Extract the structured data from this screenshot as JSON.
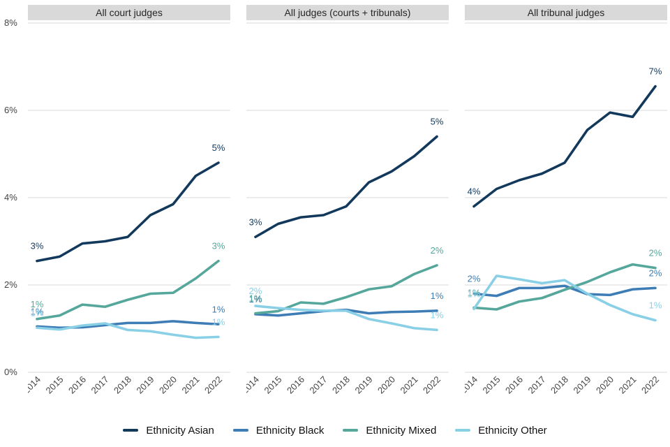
{
  "chart_data": {
    "type": "line",
    "title": "",
    "x": [
      2014,
      2015,
      2016,
      2017,
      2018,
      2019,
      2020,
      2021,
      2022
    ],
    "ylim": [
      0,
      8
    ],
    "ytick_labels": [
      "0%",
      "2%",
      "4%",
      "6%",
      "8%"
    ],
    "grid": "horizontal",
    "legend_position": "bottom",
    "series_colors": {
      "Ethnicity Asian": "#12395c",
      "Ethnicity Black": "#3d7cb5",
      "Ethnicity Mixed": "#55a79b",
      "Ethnicity Other": "#89cfe6"
    },
    "panels": [
      {
        "label": "All court judges",
        "series": [
          {
            "name": "Ethnicity Asian",
            "values": [
              2.55,
              2.65,
              2.95,
              3.0,
              3.1,
              3.6,
              3.85,
              4.5,
              4.8
            ],
            "first_label": "3%",
            "last_label": "5%"
          },
          {
            "name": "Ethnicity Black",
            "values": [
              1.05,
              1.02,
              1.03,
              1.08,
              1.13,
              1.13,
              1.17,
              1.13,
              1.1
            ],
            "first_label": "1%",
            "last_label": "1%"
          },
          {
            "name": "Ethnicity Mixed",
            "values": [
              1.22,
              1.3,
              1.55,
              1.5,
              1.66,
              1.8,
              1.82,
              2.15,
              2.55
            ],
            "first_label": "1%",
            "last_label": "3%"
          },
          {
            "name": "Ethnicity Other",
            "values": [
              1.02,
              0.98,
              1.07,
              1.12,
              0.97,
              0.94,
              0.86,
              0.79,
              0.81
            ],
            "first_label": "1%",
            "last_label": "1%"
          }
        ]
      },
      {
        "label": "All judges (courts + tribunals)",
        "series": [
          {
            "name": "Ethnicity Asian",
            "values": [
              3.1,
              3.4,
              3.55,
              3.6,
              3.8,
              4.35,
              4.6,
              4.95,
              5.4
            ],
            "first_label": "3%",
            "last_label": "5%"
          },
          {
            "name": "Ethnicity Black",
            "values": [
              1.33,
              1.3,
              1.35,
              1.4,
              1.43,
              1.35,
              1.38,
              1.39,
              1.41
            ],
            "first_label": "1%",
            "last_label": "1%"
          },
          {
            "name": "Ethnicity Mixed",
            "values": [
              1.35,
              1.4,
              1.6,
              1.57,
              1.72,
              1.9,
              1.97,
              2.25,
              2.45
            ],
            "first_label": "1%",
            "last_label": "2%"
          },
          {
            "name": "Ethnicity Other",
            "values": [
              1.52,
              1.47,
              1.43,
              1.41,
              1.41,
              1.22,
              1.12,
              1.01,
              0.97
            ],
            "first_label": "2%",
            "last_label": "1%"
          }
        ]
      },
      {
        "label": "All tribunal judges",
        "series": [
          {
            "name": "Ethnicity Asian",
            "values": [
              3.8,
              4.2,
              4.4,
              4.55,
              4.8,
              5.55,
              5.95,
              5.85,
              6.55
            ],
            "first_label": "4%",
            "last_label": "7%"
          },
          {
            "name": "Ethnicity Black",
            "values": [
              1.8,
              1.75,
              1.93,
              1.93,
              1.98,
              1.79,
              1.77,
              1.9,
              1.93
            ],
            "first_label": "2%",
            "last_label": "2%"
          },
          {
            "name": "Ethnicity Mixed",
            "values": [
              1.48,
              1.44,
              1.62,
              1.7,
              1.89,
              2.07,
              2.29,
              2.47,
              2.39
            ],
            "first_label": "1%",
            "last_label": "2%"
          },
          {
            "name": "Ethnicity Other",
            "values": [
              1.45,
              2.21,
              2.13,
              2.04,
              2.11,
              1.8,
              1.54,
              1.33,
              1.19
            ],
            "first_label": "1%",
            "last_label": "1%"
          }
        ]
      }
    ],
    "legend": [
      "Ethnicity Asian",
      "Ethnicity Black",
      "Ethnicity Mixed",
      "Ethnicity Other"
    ]
  },
  "colors": {
    "grid": "#d9d9d9",
    "header_bg": "#d9d9d9",
    "header_text": "#262626",
    "axis_text": "#454545"
  }
}
